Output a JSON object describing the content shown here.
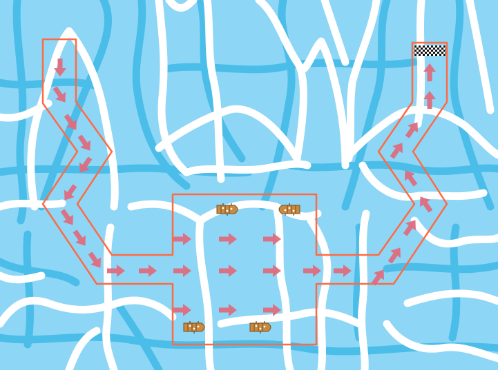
{
  "game": {
    "colors": {
      "water": "#8dd6f5",
      "water_dark": "#4bbde9",
      "ice": "#ffffff",
      "path": "#ff6a45",
      "arrow": "#e06c7e",
      "boat": "#c98a3f",
      "boat_dark": "#7a4d1f"
    },
    "finish_flag": "checkered-flag-icon",
    "boat_icon": "wooden-boat-icon",
    "arrow_icon": "direction-arrow-icon",
    "boat_count": 4
  }
}
